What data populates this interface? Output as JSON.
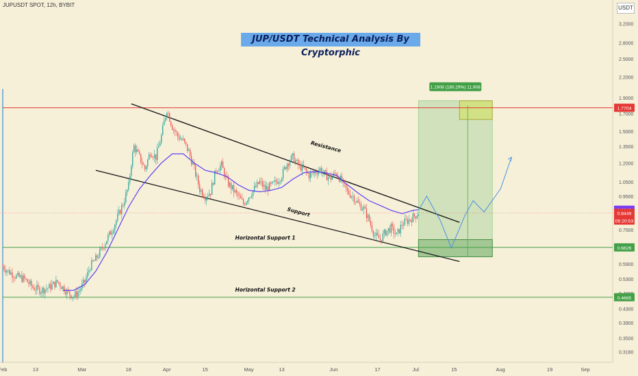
{
  "header": {
    "symbol": "JUPUSDT SPOT, 12h, BYBIT",
    "currency": "USDT"
  },
  "chart_data": {
    "type": "candlestick",
    "title": "JUP/USDT Technical Analysis By Cryptorphic",
    "ylim": [
      0.295,
      3.4
    ],
    "yscale": "log",
    "y_ticks": [
      "3.2000",
      "2.8000",
      "2.5000",
      "2.2000",
      "1.9000",
      "1.7000",
      "1.5000",
      "1.3500",
      "1.2000",
      "1.0500",
      "0.9500",
      "0.8500",
      "0.7500",
      "0.6700",
      "0.5900",
      "0.5300",
      "0.4800",
      "0.4300",
      "0.3900",
      "0.3500",
      "0.3180"
    ],
    "x_ticks": [
      {
        "label": "Feb",
        "day": 0
      },
      {
        "label": "13",
        "day": 12
      },
      {
        "label": "Mar",
        "day": 29
      },
      {
        "label": "18",
        "day": 46
      },
      {
        "label": "Apr",
        "day": 60
      },
      {
        "label": "15",
        "day": 74
      },
      {
        "label": "May",
        "day": 90
      },
      {
        "label": "13",
        "day": 102
      },
      {
        "label": "Jun",
        "day": 121
      },
      {
        "label": "17",
        "day": 137
      },
      {
        "label": "Jul",
        "day": 151
      },
      {
        "label": "15",
        "day": 165
      },
      {
        "label": "Aug",
        "day": 182
      },
      {
        "label": "19",
        "day": 200
      },
      {
        "label": "Sep",
        "day": 213
      }
    ],
    "xlim": [
      -1,
      223
    ],
    "price_path": [
      [
        0,
        0.58
      ],
      [
        2,
        0.56
      ],
      [
        5,
        0.54
      ],
      [
        8,
        0.53
      ],
      [
        11,
        0.5
      ],
      [
        14,
        0.49
      ],
      [
        17,
        0.5
      ],
      [
        20,
        0.52
      ],
      [
        22,
        0.5
      ],
      [
        24,
        0.48
      ],
      [
        26,
        0.47
      ],
      [
        28,
        0.49
      ],
      [
        30,
        0.52
      ],
      [
        32,
        0.58
      ],
      [
        34,
        0.61
      ],
      [
        36,
        0.65
      ],
      [
        38,
        0.7
      ],
      [
        40,
        0.75
      ],
      [
        42,
        0.82
      ],
      [
        44,
        0.9
      ],
      [
        46,
        1.02
      ],
      [
        47,
        1.2
      ],
      [
        48,
        1.35
      ],
      [
        50,
        1.25
      ],
      [
        52,
        1.15
      ],
      [
        54,
        1.3
      ],
      [
        56,
        1.25
      ],
      [
        58,
        1.45
      ],
      [
        59,
        1.6
      ],
      [
        60,
        1.75
      ],
      [
        62,
        1.55
      ],
      [
        64,
        1.45
      ],
      [
        66,
        1.4
      ],
      [
        68,
        1.3
      ],
      [
        70,
        1.15
      ],
      [
        72,
        1.0
      ],
      [
        74,
        0.95
      ],
      [
        76,
        0.98
      ],
      [
        78,
        1.15
      ],
      [
        80,
        1.18
      ],
      [
        82,
        1.05
      ],
      [
        84,
        1.0
      ],
      [
        86,
        0.95
      ],
      [
        88,
        0.9
      ],
      [
        90,
        0.95
      ],
      [
        92,
        1.0
      ],
      [
        94,
        1.05
      ],
      [
        96,
        1.0
      ],
      [
        98,
        1.02
      ],
      [
        100,
        1.05
      ],
      [
        102,
        1.1
      ],
      [
        104,
        1.2
      ],
      [
        106,
        1.25
      ],
      [
        108,
        1.18
      ],
      [
        110,
        1.15
      ],
      [
        112,
        1.1
      ],
      [
        114,
        1.12
      ],
      [
        116,
        1.15
      ],
      [
        118,
        1.1
      ],
      [
        120,
        1.08
      ],
      [
        122,
        1.12
      ],
      [
        124,
        1.05
      ],
      [
        126,
        0.98
      ],
      [
        128,
        0.95
      ],
      [
        130,
        0.9
      ],
      [
        132,
        0.87
      ],
      [
        134,
        0.8
      ],
      [
        136,
        0.72
      ],
      [
        138,
        0.7
      ],
      [
        140,
        0.74
      ],
      [
        142,
        0.76
      ],
      [
        144,
        0.72
      ],
      [
        146,
        0.78
      ],
      [
        148,
        0.8
      ],
      [
        150,
        0.82
      ],
      [
        152,
        0.845
      ]
    ],
    "ma_path": [
      [
        22,
        0.49
      ],
      [
        26,
        0.49
      ],
      [
        30,
        0.51
      ],
      [
        34,
        0.56
      ],
      [
        38,
        0.64
      ],
      [
        42,
        0.75
      ],
      [
        46,
        0.88
      ],
      [
        50,
        1.0
      ],
      [
        54,
        1.1
      ],
      [
        58,
        1.2
      ],
      [
        62,
        1.28
      ],
      [
        66,
        1.28
      ],
      [
        70,
        1.2
      ],
      [
        74,
        1.14
      ],
      [
        78,
        1.12
      ],
      [
        82,
        1.09
      ],
      [
        86,
        1.03
      ],
      [
        90,
        0.99
      ],
      [
        94,
        0.98
      ],
      [
        98,
        0.99
      ],
      [
        102,
        1.01
      ],
      [
        106,
        1.07
      ],
      [
        110,
        1.12
      ],
      [
        114,
        1.13
      ],
      [
        118,
        1.12
      ],
      [
        122,
        1.1
      ],
      [
        126,
        1.03
      ],
      [
        130,
        0.97
      ],
      [
        134,
        0.92
      ],
      [
        138,
        0.89
      ],
      [
        142,
        0.86
      ],
      [
        146,
        0.84
      ],
      [
        150,
        0.86
      ],
      [
        152,
        0.864
      ]
    ],
    "resistance_line": [
      [
        47,
        1.82
      ],
      [
        167,
        0.79
      ]
    ],
    "support_line": [
      [
        34,
        1.14
      ],
      [
        167,
        0.6
      ]
    ],
    "horizontal_levels": [
      {
        "name": "Horizontal Support 1",
        "value": 0.6626,
        "color": "#43a047"
      },
      {
        "name": "Horizontal Support 2",
        "value": 0.4665,
        "color": "#43a047"
      },
      {
        "name": "Resistance level",
        "value": 1.7704,
        "color": "#e53935"
      }
    ],
    "projection_path": [
      [
        152,
        0.86
      ],
      [
        155,
        0.95
      ],
      [
        160,
        0.8
      ],
      [
        164,
        0.66
      ],
      [
        169,
        0.83
      ],
      [
        172,
        0.92
      ],
      [
        176,
        0.85
      ],
      [
        182,
        1.0
      ],
      [
        186,
        1.25
      ]
    ],
    "target_box": {
      "x0": 152,
      "x1": 179,
      "y0": 0.62,
      "y1": 1.86
    },
    "entry_box": {
      "x0": 152,
      "x1": 179,
      "y0": 0.62,
      "y1": 0.7
    },
    "target_zone": {
      "x0": 167,
      "x1": 179,
      "y0": 1.63,
      "y1": 1.86
    },
    "target_label": "1.1908 (180.29%) 11,908",
    "annotations": [
      {
        "text": "Resistance",
        "day": 118,
        "value": 1.33,
        "angle": 15
      },
      {
        "text": "Support",
        "day": 108,
        "value": 0.84,
        "angle": 15
      },
      {
        "text": "Horizontal Support 1",
        "day": 96,
        "value": 0.7,
        "angle": 0
      },
      {
        "text": "Horizontal Support 2",
        "day": 96,
        "value": 0.485,
        "angle": 0
      }
    ],
    "price_labels": [
      {
        "text": "1.7704",
        "value": 1.7704,
        "bg": "#e53935",
        "fg": "#ffffff"
      },
      {
        "text": "0.8640",
        "value": 0.864,
        "bg": "#7b3ff2",
        "fg": "#ffffff"
      },
      {
        "text": "0.8449",
        "value": 0.8449,
        "bg": "#e53935",
        "fg": "#ffffff"
      },
      {
        "text": "05:20:53",
        "value": 0.8,
        "bg": "#e53935",
        "fg": "#ffffff"
      },
      {
        "text": "0.6626",
        "value": 0.6626,
        "bg": "#43a047",
        "fg": "#ffffff"
      },
      {
        "text": "0.4665",
        "value": 0.4665,
        "bg": "#43a047",
        "fg": "#ffffff"
      }
    ]
  }
}
